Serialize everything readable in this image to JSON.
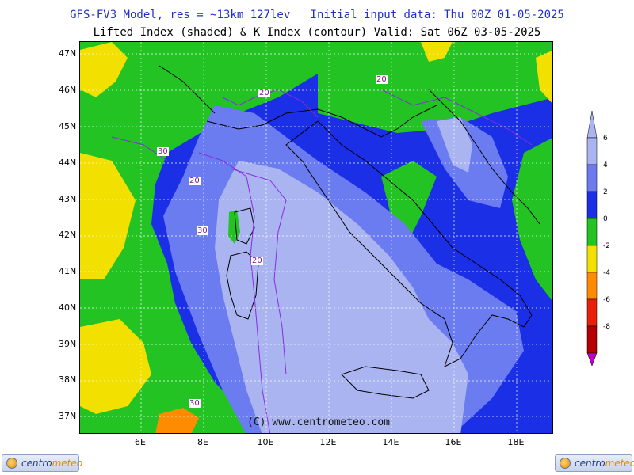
{
  "header": {
    "line1": "GFS-FV3 Model, res = ~13km 127lev   Initial input data: Thu 00Z 01-05-2025",
    "line2": "Lifted Index (shaded) & K Index (contour) Valid: Sat 06Z 03-05-2025"
  },
  "axes": {
    "latitudes": [
      "47N",
      "46N",
      "45N",
      "44N",
      "43N",
      "42N",
      "41N",
      "40N",
      "39N",
      "38N",
      "37N"
    ],
    "longitudes": [
      "6E",
      "8E",
      "10E",
      "12E",
      "14E",
      "16E",
      "18E"
    ]
  },
  "colorbar": {
    "labels": [
      "6",
      "4",
      "2",
      "0",
      "-2",
      "-4",
      "-6",
      "-8"
    ],
    "colors": [
      "#aab4f0",
      "#6a7cf0",
      "#1a2fe6",
      "#22c322",
      "#f2e000",
      "#ff8c00",
      "#e8200a",
      "#b40000",
      "#c000c0"
    ]
  },
  "contour_labels": [
    "20",
    "20",
    "30",
    "20",
    "30",
    "20",
    "30"
  ],
  "copyright": "(C) www.centrometeo.com",
  "logo": {
    "part1": "centro",
    "part2": "meteo"
  },
  "colors": {
    "green": "#22c322",
    "yellow": "#f2e000",
    "blue": "#1a2fe6",
    "mid_blue": "#6a7cf0",
    "light_blue": "#aab4f0",
    "orange": "#ff8c00",
    "contour": "#8a2be2"
  }
}
